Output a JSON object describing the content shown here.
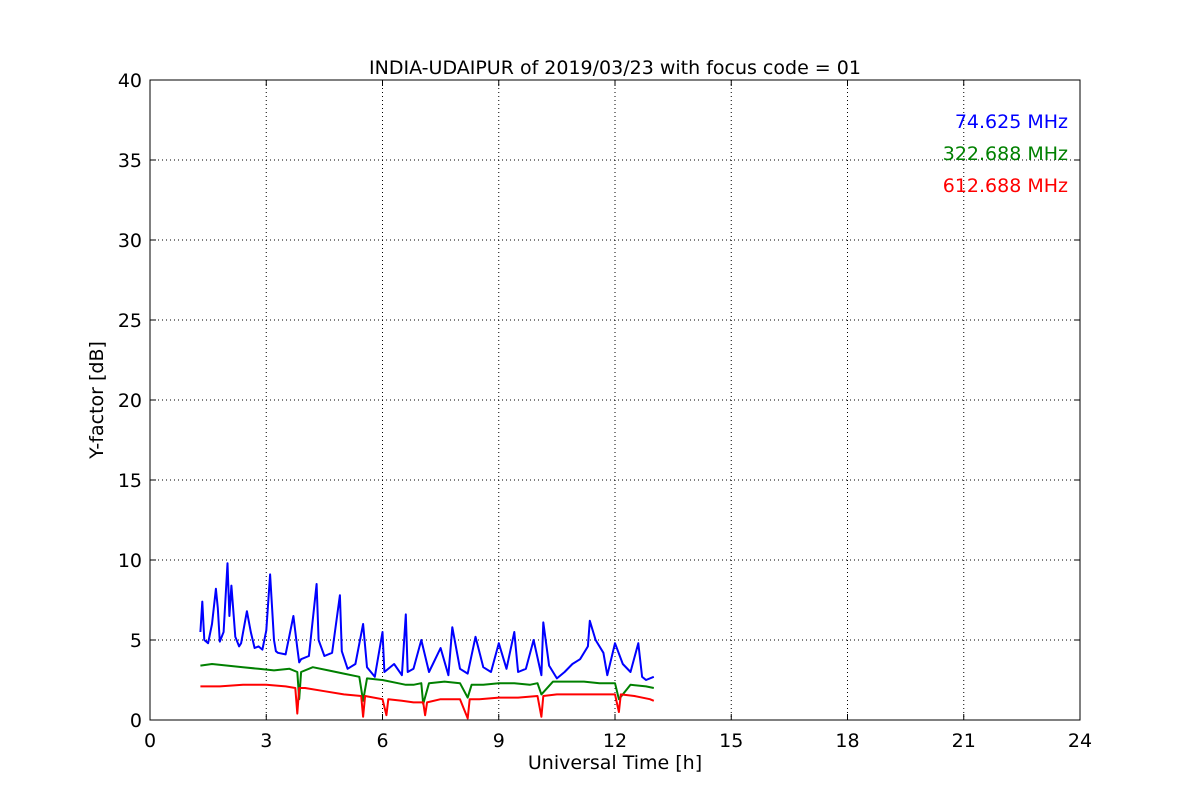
{
  "chart_data": {
    "type": "line",
    "title": "INDIA-UDAIPUR of 2019/03/23 with focus code = 01",
    "xlabel": "Universal Time [h]",
    "ylabel": "Y-factor [dB]",
    "xlim": [
      0,
      24
    ],
    "ylim": [
      0,
      40
    ],
    "xticks": [
      0,
      3,
      6,
      9,
      12,
      15,
      18,
      21,
      24
    ],
    "yticks": [
      0,
      5,
      10,
      15,
      20,
      25,
      30,
      35,
      40
    ],
    "grid": true,
    "legend_position": "top-right",
    "series": [
      {
        "name": "74.625 MHz",
        "color": "#0000ff",
        "x": [
          1.3,
          1.35,
          1.4,
          1.5,
          1.6,
          1.7,
          1.75,
          1.8,
          1.9,
          2.0,
          2.05,
          2.1,
          2.2,
          2.3,
          2.35,
          2.5,
          2.6,
          2.7,
          2.8,
          2.9,
          3.0,
          3.1,
          3.2,
          3.25,
          3.3,
          3.5,
          3.7,
          3.8,
          3.85,
          3.9,
          4.1,
          4.3,
          4.35,
          4.5,
          4.7,
          4.9,
          4.95,
          5.1,
          5.3,
          5.5,
          5.6,
          5.8,
          6.0,
          6.05,
          6.3,
          6.5,
          6.6,
          6.65,
          6.8,
          7.0,
          7.2,
          7.3,
          7.5,
          7.7,
          7.8,
          8.0,
          8.2,
          8.4,
          8.6,
          8.8,
          9.0,
          9.2,
          9.4,
          9.5,
          9.7,
          9.9,
          10.1,
          10.15,
          10.3,
          10.5,
          10.7,
          10.9,
          11.1,
          11.3,
          11.35,
          11.5,
          11.7,
          11.8,
          12.0,
          12.2,
          12.4,
          12.6,
          12.7,
          12.8,
          13.0
        ],
        "y": [
          5.5,
          7.4,
          5.0,
          4.8,
          6.0,
          8.2,
          7.0,
          4.9,
          5.5,
          9.8,
          6.5,
          8.4,
          5.2,
          4.6,
          4.8,
          6.8,
          5.5,
          4.5,
          4.6,
          4.4,
          5.6,
          9.1,
          5.0,
          4.3,
          4.2,
          4.1,
          6.5,
          4.5,
          3.6,
          3.8,
          4.0,
          8.5,
          5.0,
          4.0,
          4.2,
          7.8,
          4.3,
          3.2,
          3.5,
          6.0,
          3.3,
          2.7,
          5.5,
          3.0,
          3.5,
          2.8,
          6.6,
          3.0,
          3.2,
          5.0,
          3.0,
          3.5,
          4.5,
          2.8,
          5.8,
          3.2,
          2.9,
          5.2,
          3.3,
          3.0,
          4.8,
          3.2,
          5.5,
          3.0,
          3.2,
          5.0,
          2.8,
          6.1,
          3.4,
          2.6,
          3.0,
          3.5,
          3.8,
          4.6,
          6.2,
          5.0,
          4.2,
          2.8,
          4.8,
          3.5,
          3.0,
          4.8,
          2.7,
          2.5,
          2.7
        ]
      },
      {
        "name": "322.688 MHz",
        "color": "#008000",
        "x": [
          1.3,
          1.6,
          2.0,
          2.4,
          2.8,
          3.2,
          3.6,
          3.8,
          3.85,
          3.9,
          4.2,
          4.6,
          5.0,
          5.4,
          5.5,
          5.6,
          6.0,
          6.4,
          6.6,
          6.8,
          7.0,
          7.05,
          7.2,
          7.6,
          8.0,
          8.2,
          8.3,
          8.6,
          9.0,
          9.4,
          9.8,
          10.0,
          10.1,
          10.4,
          10.8,
          11.2,
          11.6,
          12.0,
          12.1,
          12.4,
          12.8,
          13.0
        ],
        "y": [
          3.4,
          3.5,
          3.4,
          3.3,
          3.2,
          3.1,
          3.2,
          3.0,
          1.3,
          3.0,
          3.3,
          3.1,
          2.9,
          2.7,
          1.2,
          2.6,
          2.5,
          2.3,
          2.2,
          2.2,
          2.3,
          1.0,
          2.3,
          2.4,
          2.3,
          1.4,
          2.2,
          2.2,
          2.3,
          2.3,
          2.2,
          2.3,
          1.6,
          2.4,
          2.4,
          2.4,
          2.3,
          2.3,
          1.3,
          2.2,
          2.1,
          2.0
        ]
      },
      {
        "name": "612.688 MHz",
        "color": "#ff0000",
        "x": [
          1.3,
          1.8,
          2.4,
          3.0,
          3.5,
          3.75,
          3.8,
          3.85,
          4.0,
          4.5,
          5.0,
          5.45,
          5.5,
          5.55,
          6.0,
          6.1,
          6.15,
          6.5,
          6.8,
          7.05,
          7.1,
          7.15,
          7.5,
          8.0,
          8.15,
          8.2,
          8.25,
          8.5,
          9.0,
          9.5,
          10.0,
          10.1,
          10.15,
          10.5,
          11.0,
          11.5,
          12.0,
          12.1,
          12.15,
          12.5,
          12.9,
          13.0
        ],
        "y": [
          2.1,
          2.1,
          2.2,
          2.2,
          2.1,
          2.0,
          0.4,
          2.0,
          2.0,
          1.8,
          1.6,
          1.5,
          0.2,
          1.5,
          1.3,
          0.3,
          1.3,
          1.2,
          1.1,
          1.1,
          0.3,
          1.1,
          1.3,
          1.3,
          0.4,
          0.1,
          1.3,
          1.3,
          1.4,
          1.4,
          1.5,
          0.2,
          1.5,
          1.6,
          1.6,
          1.6,
          1.6,
          0.5,
          1.6,
          1.5,
          1.3,
          1.2
        ]
      }
    ]
  }
}
